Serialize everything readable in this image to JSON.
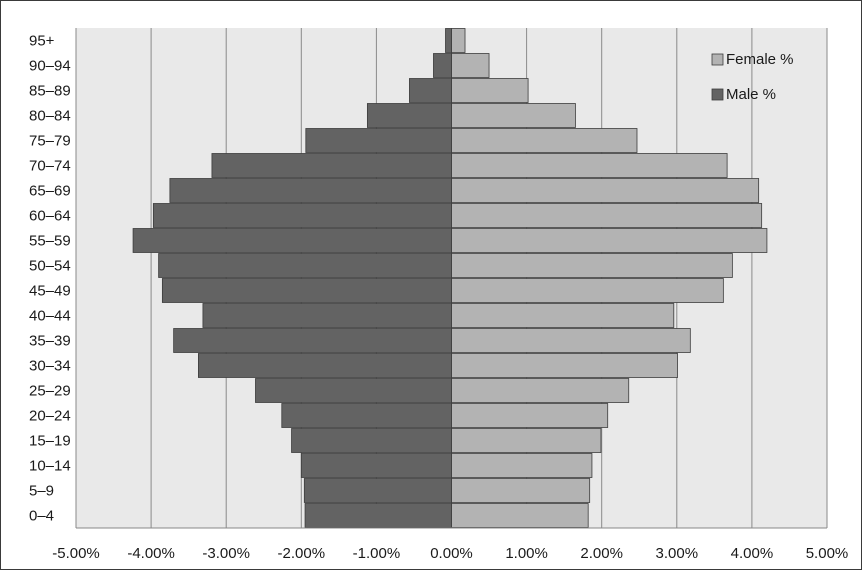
{
  "chart_data": {
    "type": "bar",
    "orientation": "horizontal",
    "categories": [
      "0–4",
      "5–9",
      "10–14",
      "15–19",
      "20–24",
      "25–29",
      "30–34",
      "35–39",
      "40–44",
      "45–49",
      "50–54",
      "55–59",
      "60–64",
      "65–69",
      "70–74",
      "75–79",
      "80–84",
      "85–89",
      "90–94",
      "95+"
    ],
    "series": [
      {
        "name": "Female %",
        "color": "#b3b3b3",
        "values": [
          1.82,
          1.84,
          1.87,
          1.99,
          2.08,
          2.36,
          3.01,
          3.18,
          2.96,
          3.62,
          3.74,
          4.2,
          4.13,
          4.09,
          3.67,
          2.47,
          1.65,
          1.02,
          0.5,
          0.18
        ]
      },
      {
        "name": "Male %",
        "color": "#636363",
        "values": [
          -1.95,
          -1.96,
          -2.0,
          -2.13,
          -2.26,
          -2.61,
          -3.37,
          -3.7,
          -3.31,
          -3.85,
          -3.9,
          -4.24,
          -3.97,
          -3.75,
          -3.19,
          -1.94,
          -1.12,
          -0.56,
          -0.24,
          -0.08
        ]
      }
    ],
    "xlim": [
      -5,
      5
    ],
    "xticks": [
      "-5.00%",
      "-4.00%",
      "-3.00%",
      "-2.00%",
      "-1.00%",
      "0.00%",
      "1.00%",
      "2.00%",
      "3.00%",
      "4.00%",
      "5.00%"
    ],
    "grid": true,
    "legend_position": "top-right",
    "title": "",
    "xlabel": "",
    "ylabel": ""
  }
}
